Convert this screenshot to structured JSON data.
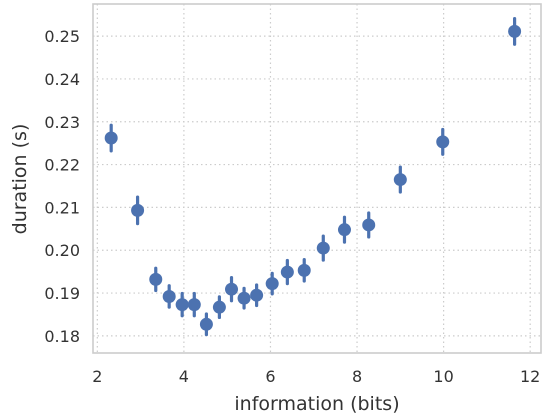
{
  "chart_data": {
    "type": "scatter",
    "title": "",
    "xlabel": "information (bits)",
    "ylabel": "duration (s)",
    "xlim": [
      1.9,
      12.25
    ],
    "ylim": [
      0.176,
      0.2575
    ],
    "x_ticks": [
      2,
      4,
      6,
      8,
      10,
      12
    ],
    "x_tick_labels": [
      "2",
      "4",
      "6",
      "8",
      "10",
      "12"
    ],
    "y_ticks": [
      0.18,
      0.19,
      0.2,
      0.21,
      0.22,
      0.23,
      0.24,
      0.25
    ],
    "y_tick_labels": [
      "0.18",
      "0.19",
      "0.20",
      "0.21",
      "0.22",
      "0.23",
      "0.24",
      "0.25"
    ],
    "grid": true,
    "error_bars": true,
    "color": "#4c72b0",
    "grid_color": "#cccccc",
    "frame_color": "#cccccc",
    "points": [
      {
        "x": 2.32,
        "y": 0.2262,
        "err": 0.003
      },
      {
        "x": 2.93,
        "y": 0.2093,
        "err": 0.0031
      },
      {
        "x": 3.35,
        "y": 0.1932,
        "err": 0.0026
      },
      {
        "x": 3.66,
        "y": 0.1892,
        "err": 0.0025
      },
      {
        "x": 3.96,
        "y": 0.1873,
        "err": 0.0026
      },
      {
        "x": 4.24,
        "y": 0.1873,
        "err": 0.0026
      },
      {
        "x": 4.52,
        "y": 0.1827,
        "err": 0.0024
      },
      {
        "x": 4.82,
        "y": 0.1867,
        "err": 0.0024
      },
      {
        "x": 5.1,
        "y": 0.1909,
        "err": 0.0027
      },
      {
        "x": 5.39,
        "y": 0.1888,
        "err": 0.0023
      },
      {
        "x": 5.68,
        "y": 0.1895,
        "err": 0.0024
      },
      {
        "x": 6.04,
        "y": 0.1922,
        "err": 0.0024
      },
      {
        "x": 6.39,
        "y": 0.1949,
        "err": 0.0027
      },
      {
        "x": 6.78,
        "y": 0.1953,
        "err": 0.0025
      },
      {
        "x": 7.22,
        "y": 0.2005,
        "err": 0.0028
      },
      {
        "x": 7.71,
        "y": 0.2048,
        "err": 0.0029
      },
      {
        "x": 8.27,
        "y": 0.2059,
        "err": 0.0028
      },
      {
        "x": 9.0,
        "y": 0.2165,
        "err": 0.0029
      },
      {
        "x": 9.98,
        "y": 0.2253,
        "err": 0.0029
      },
      {
        "x": 11.64,
        "y": 0.2511,
        "err": 0.003
      }
    ]
  }
}
